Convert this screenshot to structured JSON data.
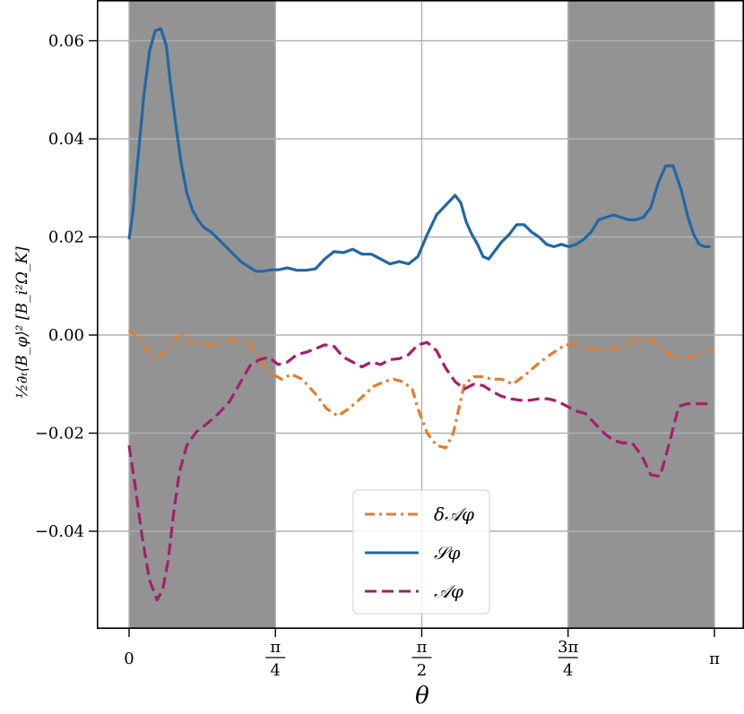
{
  "chart_data": {
    "type": "line",
    "xlabel": "θ",
    "ylabel": "½∂ₜ⟨B_φ⟩² [B_i²Ω_K]",
    "xlim": [
      0,
      3.1416
    ],
    "ylim": [
      -0.059,
      0.068
    ],
    "grid": true,
    "legend_position": "lower-center",
    "x_ticks": [
      {
        "value": 0,
        "num": "0",
        "den": ""
      },
      {
        "value": 0.7854,
        "num": "π",
        "den": "4"
      },
      {
        "value": 1.5708,
        "num": "π",
        "den": "2"
      },
      {
        "value": 2.3562,
        "num": "3π",
        "den": "4"
      },
      {
        "value": 3.1416,
        "num": "π",
        "den": ""
      }
    ],
    "y_ticks": [
      {
        "value": 0.06,
        "label": "0.06"
      },
      {
        "value": 0.04,
        "label": "0.04"
      },
      {
        "value": 0.02,
        "label": "0.02"
      },
      {
        "value": 0.0,
        "label": "0.00"
      },
      {
        "value": -0.02,
        "label": "−0.02"
      },
      {
        "value": -0.04,
        "label": "−0.04"
      }
    ],
    "shaded_regions": [
      {
        "x0": 0,
        "x1": 0.7854,
        "color": "#939393"
      },
      {
        "x0": 2.3562,
        "x1": 3.1416,
        "color": "#939393"
      }
    ],
    "series": [
      {
        "name": "δ𝒜φ",
        "color": "#e07d2e",
        "dash": "dashdot",
        "x": [
          0,
          0.06,
          0.13,
          0.21,
          0.28,
          0.31,
          0.36,
          0.41,
          0.47,
          0.55,
          0.63,
          0.69,
          0.72,
          0.77,
          0.82,
          0.87,
          0.93,
          1.0,
          1.06,
          1.12,
          1.18,
          1.24,
          1.31,
          1.37,
          1.42,
          1.47,
          1.52,
          1.55,
          1.6,
          1.65,
          1.7,
          1.74,
          1.77,
          1.8,
          1.85,
          1.9,
          1.95,
          2.0,
          2.06,
          2.13,
          2.19,
          2.26,
          2.34,
          2.39,
          2.45,
          2.51,
          2.58,
          2.63,
          2.68,
          2.73,
          2.76,
          2.81,
          2.87,
          2.92,
          2.97,
          3.02,
          3.08,
          3.13
        ],
        "y": [
          0.001,
          -0.001,
          -0.005,
          -0.003,
          0.0005,
          -0.001,
          -0.002,
          -0.002,
          -0.002,
          -0.001,
          -0.001,
          -0.004,
          -0.006,
          -0.008,
          -0.009,
          -0.008,
          -0.009,
          -0.012,
          -0.015,
          -0.0165,
          -0.015,
          -0.013,
          -0.0105,
          -0.0095,
          -0.009,
          -0.0095,
          -0.011,
          -0.015,
          -0.02,
          -0.0225,
          -0.023,
          -0.02,
          -0.015,
          -0.01,
          -0.0085,
          -0.0085,
          -0.009,
          -0.009,
          -0.01,
          -0.008,
          -0.006,
          -0.004,
          -0.002,
          -0.002,
          -0.0025,
          -0.003,
          -0.003,
          -0.0025,
          -0.002,
          -0.0005,
          -0.001,
          -0.001,
          -0.003,
          -0.0045,
          -0.0045,
          -0.0045,
          -0.0035,
          -0.003
        ]
      },
      {
        "name": "𝒮φ",
        "color": "#2167a7",
        "dash": "solid",
        "x": [
          0,
          0.02,
          0.05,
          0.08,
          0.11,
          0.14,
          0.17,
          0.2,
          0.22,
          0.25,
          0.28,
          0.31,
          0.34,
          0.37,
          0.4,
          0.44,
          0.48,
          0.52,
          0.56,
          0.6,
          0.64,
          0.68,
          0.72,
          0.76,
          0.8,
          0.85,
          0.9,
          0.95,
          1.0,
          1.05,
          1.1,
          1.15,
          1.2,
          1.25,
          1.3,
          1.35,
          1.4,
          1.45,
          1.5,
          1.55,
          1.6,
          1.65,
          1.7,
          1.75,
          1.78,
          1.81,
          1.84,
          1.87,
          1.9,
          1.93,
          1.96,
          2.0,
          2.04,
          2.08,
          2.12,
          2.16,
          2.2,
          2.24,
          2.28,
          2.32,
          2.36,
          2.4,
          2.44,
          2.48,
          2.52,
          2.56,
          2.6,
          2.64,
          2.68,
          2.72,
          2.76,
          2.8,
          2.84,
          2.88,
          2.92,
          2.96,
          3.0,
          3.03,
          3.06,
          3.09,
          3.12
        ],
        "y": [
          0.0195,
          0.025,
          0.037,
          0.049,
          0.058,
          0.062,
          0.0625,
          0.059,
          0.052,
          0.043,
          0.035,
          0.029,
          0.0255,
          0.0235,
          0.022,
          0.021,
          0.0195,
          0.018,
          0.0165,
          0.015,
          0.014,
          0.013,
          0.013,
          0.0133,
          0.0133,
          0.0137,
          0.0132,
          0.0132,
          0.0135,
          0.0155,
          0.017,
          0.0168,
          0.0175,
          0.0165,
          0.0165,
          0.0155,
          0.0145,
          0.015,
          0.0145,
          0.016,
          0.0205,
          0.0245,
          0.0265,
          0.0285,
          0.027,
          0.023,
          0.0205,
          0.0185,
          0.016,
          0.0155,
          0.017,
          0.019,
          0.0205,
          0.0225,
          0.0225,
          0.021,
          0.02,
          0.0185,
          0.018,
          0.0185,
          0.018,
          0.0185,
          0.0195,
          0.021,
          0.0235,
          0.024,
          0.0245,
          0.024,
          0.0235,
          0.0235,
          0.024,
          0.026,
          0.031,
          0.0345,
          0.0345,
          0.03,
          0.024,
          0.0205,
          0.0185,
          0.018,
          0.018
        ]
      },
      {
        "name": "𝒜φ",
        "color": "#a3206d",
        "dash": "dashed",
        "x": [
          0,
          0.03,
          0.07,
          0.11,
          0.15,
          0.18,
          0.21,
          0.24,
          0.27,
          0.31,
          0.36,
          0.42,
          0.48,
          0.54,
          0.6,
          0.65,
          0.7,
          0.75,
          0.8,
          0.85,
          0.9,
          0.95,
          1.0,
          1.05,
          1.1,
          1.15,
          1.2,
          1.25,
          1.3,
          1.35,
          1.4,
          1.45,
          1.5,
          1.55,
          1.6,
          1.65,
          1.7,
          1.75,
          1.8,
          1.85,
          1.9,
          1.95,
          2.0,
          2.05,
          2.1,
          2.15,
          2.2,
          2.25,
          2.3,
          2.35,
          2.4,
          2.45,
          2.5,
          2.55,
          2.6,
          2.65,
          2.7,
          2.75,
          2.8,
          2.85,
          2.9,
          2.95,
          3.0,
          3.05,
          3.1,
          3.13
        ],
        "y": [
          -0.0225,
          -0.03,
          -0.041,
          -0.05,
          -0.054,
          -0.052,
          -0.046,
          -0.036,
          -0.028,
          -0.0225,
          -0.0198,
          -0.018,
          -0.016,
          -0.0135,
          -0.0095,
          -0.0062,
          -0.005,
          -0.0045,
          -0.006,
          -0.0055,
          -0.004,
          -0.0035,
          -0.0028,
          -0.002,
          -0.0023,
          -0.0045,
          -0.0055,
          -0.0065,
          -0.0055,
          -0.006,
          -0.005,
          -0.0048,
          -0.004,
          -0.002,
          -0.0015,
          -0.0032,
          -0.0068,
          -0.0095,
          -0.011,
          -0.01,
          -0.0103,
          -0.0115,
          -0.0125,
          -0.013,
          -0.0133,
          -0.0133,
          -0.013,
          -0.013,
          -0.0135,
          -0.0145,
          -0.0155,
          -0.016,
          -0.018,
          -0.02,
          -0.0215,
          -0.022,
          -0.022,
          -0.0245,
          -0.0285,
          -0.0288,
          -0.022,
          -0.0145,
          -0.014,
          -0.014,
          -0.014,
          -0.014
        ]
      }
    ]
  }
}
